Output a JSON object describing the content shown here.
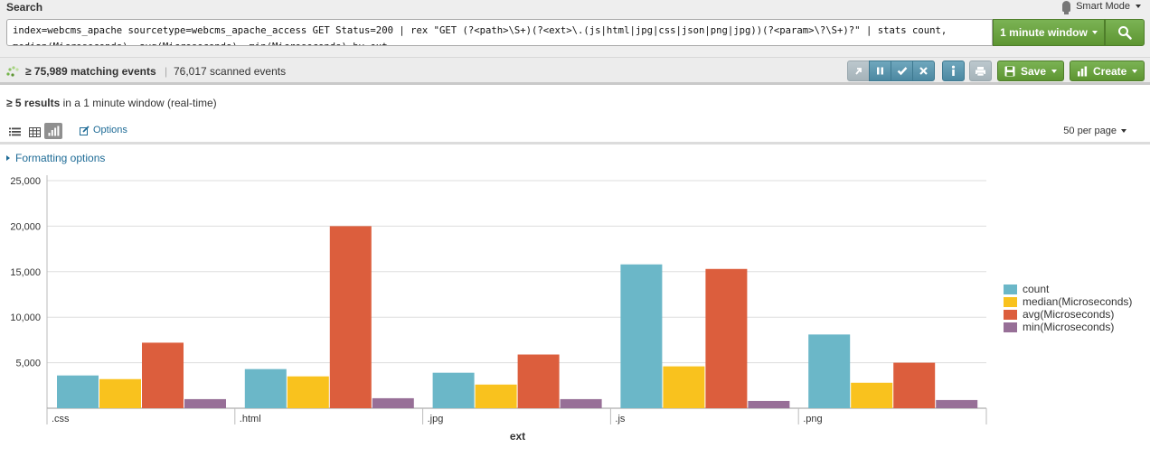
{
  "header": {
    "title": "Search",
    "mode_label": "Smart Mode",
    "query": "index=webcms_apache sourcetype=webcms_apache_access GET Status=200 | rex \"GET (?<path>\\S+)(?<ext>\\.(js|html|jpg|css|json|png|jpg))(?<param>\\?\\S+)?\" | stats count,\nmedian(Microseconds), avg(Microseconds), min(Microseconds) by ext",
    "time_range": "1 minute window"
  },
  "job": {
    "matching": "≥ 75,989 matching events",
    "separator": "|",
    "scanned": "76,017 scanned events",
    "save_label": "Save",
    "create_label": "Create"
  },
  "results": {
    "count_bold": "≥ 5 results",
    "count_rest": " in a 1 minute window (real-time)",
    "options_label": "Options",
    "per_page": "50 per page",
    "formatting": "Formatting options"
  },
  "colors": {
    "accent_green": "#5d9532",
    "link_blue": "#1e6b96",
    "count": "#6bb7c8",
    "median": "#f9c21e",
    "avg": "#dc5e3d",
    "min": "#976f97"
  },
  "chart_data": {
    "type": "bar",
    "xlabel": "ext",
    "ylabel": "",
    "categories": [
      ".css",
      ".html",
      ".jpg",
      ".js",
      ".png"
    ],
    "ylim": [
      0,
      25000
    ],
    "yticks": [
      5000,
      10000,
      15000,
      20000,
      25000
    ],
    "ytick_labels": [
      "5,000",
      "10,000",
      "15,000",
      "20,000",
      "25,000"
    ],
    "grid": true,
    "legend_position": "right",
    "series": [
      {
        "name": "count",
        "color": "#6bb7c8",
        "values": [
          3600,
          4300,
          3900,
          15800,
          8100
        ]
      },
      {
        "name": "median(Microseconds)",
        "color": "#f9c21e",
        "values": [
          3200,
          3500,
          2600,
          4600,
          2800
        ]
      },
      {
        "name": "avg(Microseconds)",
        "color": "#dc5e3d",
        "values": [
          7200,
          20000,
          5900,
          15300,
          5000
        ]
      },
      {
        "name": "min(Microseconds)",
        "color": "#976f97",
        "values": [
          1000,
          1100,
          1000,
          800,
          900
        ]
      }
    ]
  }
}
